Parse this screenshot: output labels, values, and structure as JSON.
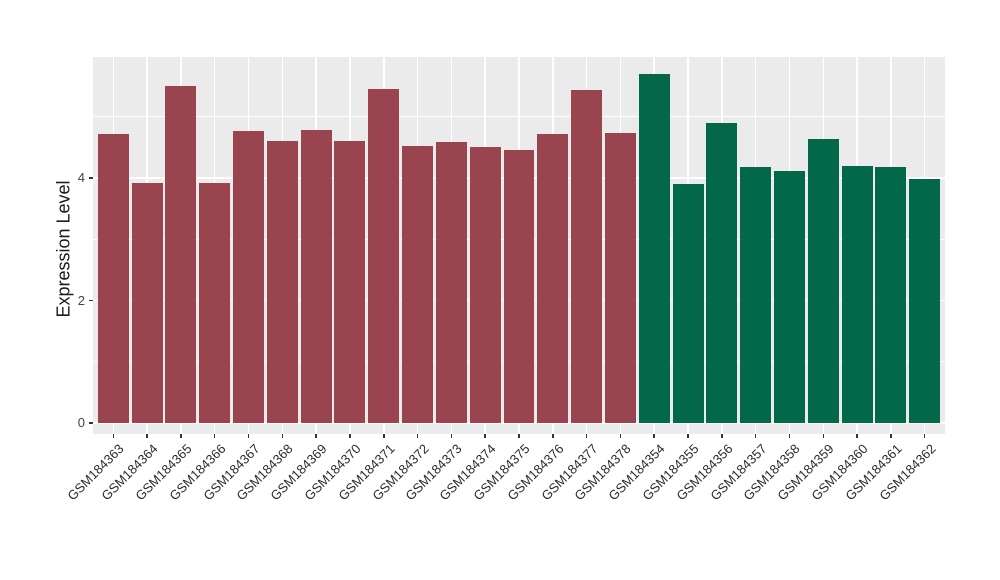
{
  "chart_data": {
    "type": "bar",
    "title": "",
    "xlabel": "",
    "ylabel": "Expression Level",
    "ylim": [
      0,
      5.98
    ],
    "yticks": [
      0,
      2,
      4
    ],
    "yminor_gridlines": [
      1,
      3,
      5
    ],
    "legend_position": "none",
    "grid": true,
    "panel_background": "#EBEBEB",
    "gridline_color": "#FFFFFF",
    "tick_color": "#333333",
    "axis_text_color": "#2b2b2b",
    "groups": [
      {
        "id": "groupA",
        "color": "#9A4450"
      },
      {
        "id": "groupB",
        "color": "#03684A"
      }
    ],
    "bars": [
      {
        "label": "GSM184363",
        "value": 4.72,
        "group": "groupA"
      },
      {
        "label": "GSM184364",
        "value": 3.92,
        "group": "groupA"
      },
      {
        "label": "GSM184365",
        "value": 5.51,
        "group": "groupA"
      },
      {
        "label": "GSM184366",
        "value": 3.92,
        "group": "groupA"
      },
      {
        "label": "GSM184367",
        "value": 4.76,
        "group": "groupA"
      },
      {
        "label": "GSM184368",
        "value": 4.61,
        "group": "groupA"
      },
      {
        "label": "GSM184369",
        "value": 4.79,
        "group": "groupA"
      },
      {
        "label": "GSM184370",
        "value": 4.61,
        "group": "groupA"
      },
      {
        "label": "GSM184371",
        "value": 5.45,
        "group": "groupA"
      },
      {
        "label": "GSM184372",
        "value": 4.52,
        "group": "groupA"
      },
      {
        "label": "GSM184373",
        "value": 4.58,
        "group": "groupA"
      },
      {
        "label": "GSM184374",
        "value": 4.5,
        "group": "groupA"
      },
      {
        "label": "GSM184375",
        "value": 4.45,
        "group": "groupA"
      },
      {
        "label": "GSM184376",
        "value": 4.72,
        "group": "groupA"
      },
      {
        "label": "GSM184377",
        "value": 5.44,
        "group": "groupA"
      },
      {
        "label": "GSM184378",
        "value": 4.74,
        "group": "groupA"
      },
      {
        "label": "GSM184354",
        "value": 5.69,
        "group": "groupB"
      },
      {
        "label": "GSM184355",
        "value": 3.91,
        "group": "groupB"
      },
      {
        "label": "GSM184356",
        "value": 4.89,
        "group": "groupB"
      },
      {
        "label": "GSM184357",
        "value": 4.18,
        "group": "groupB"
      },
      {
        "label": "GSM184358",
        "value": 4.11,
        "group": "groupB"
      },
      {
        "label": "GSM184359",
        "value": 4.64,
        "group": "groupB"
      },
      {
        "label": "GSM184360",
        "value": 4.19,
        "group": "groupB"
      },
      {
        "label": "GSM184361",
        "value": 4.18,
        "group": "groupB"
      },
      {
        "label": "GSM184362",
        "value": 3.98,
        "group": "groupB"
      }
    ]
  }
}
